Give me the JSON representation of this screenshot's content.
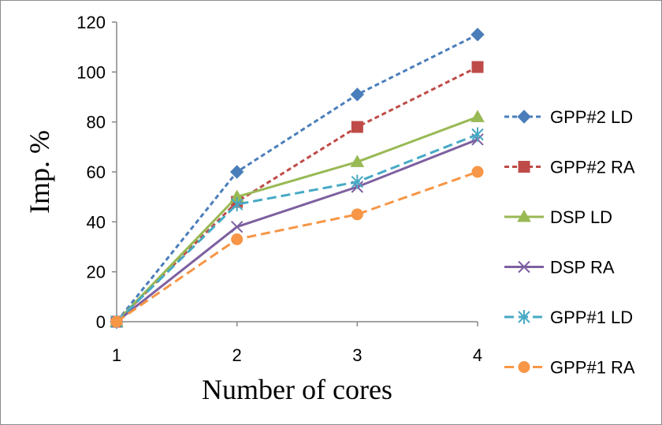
{
  "chart_data": {
    "type": "line",
    "title": "",
    "xlabel": "Number of cores",
    "ylabel": "Imp. %",
    "x": [
      1,
      2,
      3,
      4
    ],
    "ylim": [
      0,
      120
    ],
    "yticks": [
      0,
      20,
      40,
      60,
      80,
      100,
      120
    ],
    "grid": false,
    "legend_position": "right",
    "series": [
      {
        "name": "GPP#2 LD",
        "values": [
          0,
          60,
          91,
          115
        ],
        "color": "#4a7ebb",
        "dash": "dashed",
        "marker": "diamond"
      },
      {
        "name": "GPP#2 RA",
        "values": [
          0,
          48,
          78,
          102
        ],
        "color": "#be4b48",
        "dash": "dashed",
        "marker": "square"
      },
      {
        "name": "DSP LD",
        "values": [
          0,
          50,
          64,
          82
        ],
        "color": "#98b954",
        "dash": "solid",
        "marker": "triangle"
      },
      {
        "name": "DSP RA",
        "values": [
          0,
          38,
          54,
          73
        ],
        "color": "#7d60a0",
        "dash": "solid",
        "marker": "x"
      },
      {
        "name": "GPP#1 LD",
        "values": [
          0,
          47,
          56,
          75
        ],
        "color": "#46aac5",
        "dash": "longdash",
        "marker": "asterisk"
      },
      {
        "name": "GPP#1 RA",
        "values": [
          0,
          33,
          43,
          60
        ],
        "color": "#f79646",
        "dash": "longdash",
        "marker": "circle"
      }
    ]
  }
}
